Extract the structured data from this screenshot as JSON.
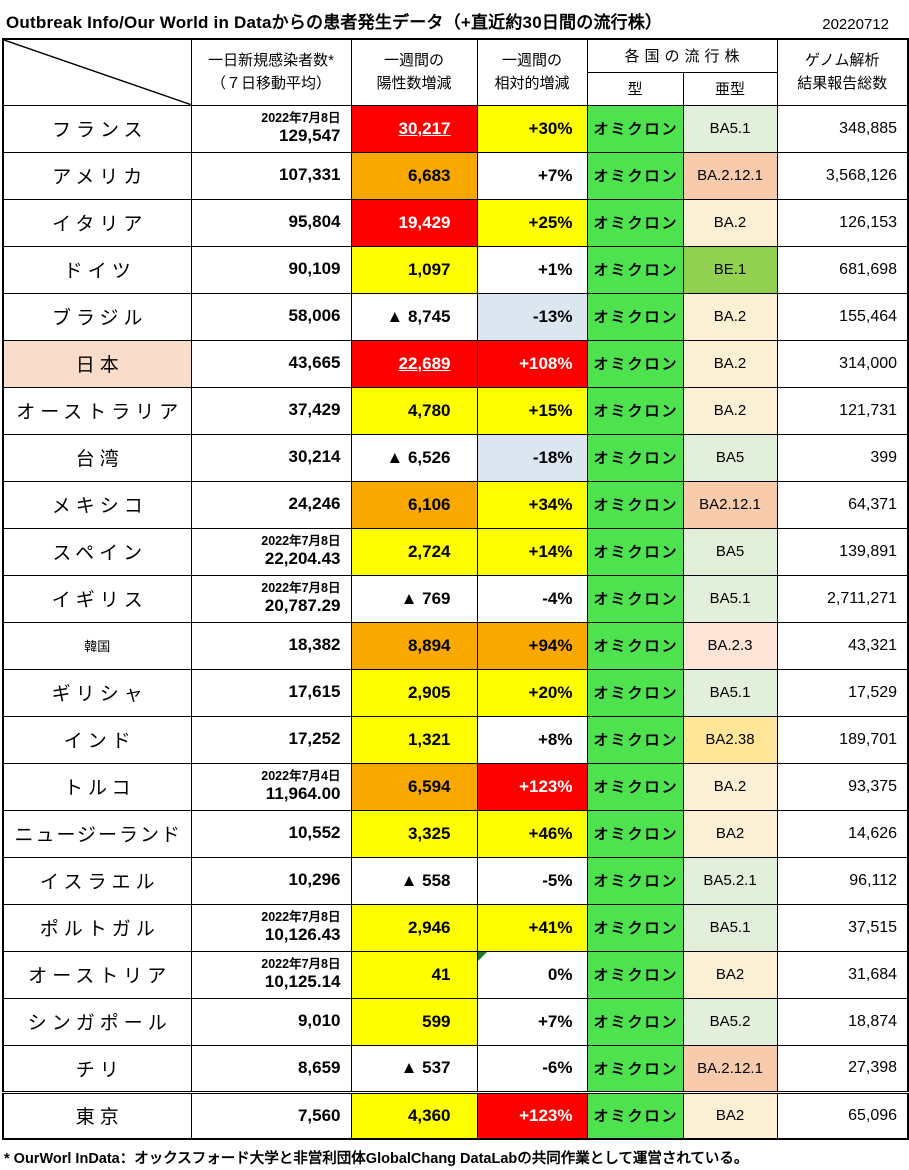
{
  "title": "Outbreak Info/Our World in Dataからの患者発生データ（+直近約30日間の流行株）",
  "report_date": "20220712",
  "header": {
    "daily_line1": "一日新規感染者数*",
    "daily_line2": "（７日移動平均）",
    "weekly_line1": "一週間の",
    "weekly_line2": "陽性数増減",
    "relative_line1": "一週間の",
    "relative_line2": "相対的増減",
    "strain_group": "各国の流行株",
    "strain_type": "型",
    "strain_subtype": "亜型",
    "genome_line1": "ゲノム解析",
    "genome_line2": "結果報告総数"
  },
  "footnote": "* OurWorl InData：オックスフォード大学と非営利団体GlobalChang DataLabの共同作業として運営されている。",
  "colors": {
    "red": "#FF0000",
    "yellow": "#FFFF00",
    "orange": "#F9A800",
    "ltblue": "#DCE6F1",
    "ltgreen": "#E2EFDA",
    "salmon": "#F8CBAD",
    "cream": "#FBF0D3",
    "green": "#92D050",
    "pink": "#FCE4D6",
    "ltorange": "#FFE699",
    "omicron": "#4FE24F",
    "japan_bg": "#FADCCB",
    "white": "#FFFFFF",
    "note_triangle": "#1E7B2E"
  },
  "type_value": "オミクロン",
  "rows": [
    {
      "country": "フランス",
      "daily_date": "2022年7月8日",
      "daily": "129,547",
      "weekly": "30,217",
      "weekly_bg": "red",
      "weekly_white": true,
      "weekly_underline": true,
      "relative": "+30%",
      "relative_bg": "yellow",
      "subtype": "BA5.1",
      "subtype_bg": "ltgreen",
      "genome": "348,885"
    },
    {
      "country": "アメリカ",
      "daily": "107,331",
      "weekly": "6,683",
      "weekly_bg": "orange",
      "relative": "+7%",
      "relative_bg": "white",
      "subtype": "BA.2.12.1",
      "subtype_bg": "salmon",
      "genome": "3,568,126"
    },
    {
      "country": "イタリア",
      "daily": "95,804",
      "weekly": "19,429",
      "weekly_bg": "red",
      "weekly_white": true,
      "relative": "+25%",
      "relative_bg": "yellow",
      "subtype": "BA.2",
      "subtype_bg": "cream",
      "genome": "126,153"
    },
    {
      "country": "ドイツ",
      "daily": "90,109",
      "weekly": "1,097",
      "weekly_bg": "yellow",
      "relative": "+1%",
      "relative_bg": "white",
      "subtype": "BE.1",
      "subtype_bg": "green",
      "genome": "681,698"
    },
    {
      "country": "ブラジル",
      "daily": "58,006",
      "weekly": "▲ 8,745",
      "weekly_bg": "white",
      "relative": "-13%",
      "relative_bg": "ltblue",
      "subtype": "BA.2",
      "subtype_bg": "cream",
      "genome": "155,464"
    },
    {
      "country": "日本",
      "country_bg": "japan_bg",
      "daily": "43,665",
      "weekly": "22,689",
      "weekly_bg": "red",
      "weekly_white": true,
      "weekly_underline": true,
      "relative": "+108%",
      "relative_bg": "red",
      "relative_white": true,
      "subtype": "BA.2",
      "subtype_bg": "cream",
      "genome": "314,000"
    },
    {
      "country": "オーストラリア",
      "daily": "37,429",
      "weekly": "4,780",
      "weekly_bg": "yellow",
      "relative": "+15%",
      "relative_bg": "yellow",
      "subtype": "BA.2",
      "subtype_bg": "cream",
      "genome": "121,731"
    },
    {
      "country": "台湾",
      "daily": "30,214",
      "weekly": "▲ 6,526",
      "weekly_bg": "white",
      "relative": "-18%",
      "relative_bg": "ltblue",
      "subtype": "BA5",
      "subtype_bg": "ltgreen",
      "genome": "399"
    },
    {
      "country": "メキシコ",
      "daily": "24,246",
      "weekly": "6,106",
      "weekly_bg": "orange",
      "relative": "+34%",
      "relative_bg": "yellow",
      "subtype": "BA2.12.1",
      "subtype_bg": "salmon",
      "genome": "64,371"
    },
    {
      "country": "スペイン",
      "daily_date": "2022年7月8日",
      "daily": "22,204.43",
      "weekly": "2,724",
      "weekly_bg": "yellow",
      "relative": "+14%",
      "relative_bg": "yellow",
      "subtype": "BA5",
      "subtype_bg": "ltgreen",
      "genome": "139,891"
    },
    {
      "country": "イギリス",
      "daily_date": "2022年7月8日",
      "daily": "20,787.29",
      "weekly": "▲ 769",
      "weekly_bg": "white",
      "relative": "-4%",
      "relative_bg": "white",
      "subtype": "BA5.1",
      "subtype_bg": "ltgreen",
      "genome": "2,711,271"
    },
    {
      "country": "韓国",
      "country_small": true,
      "daily": "18,382",
      "weekly": "8,894",
      "weekly_bg": "orange",
      "relative": "+94%",
      "relative_bg": "orange",
      "subtype": "BA.2.3",
      "subtype_bg": "pink",
      "genome": "43,321"
    },
    {
      "country": "ギリシャ",
      "daily": "17,615",
      "weekly": "2,905",
      "weekly_bg": "yellow",
      "relative": "+20%",
      "relative_bg": "yellow",
      "subtype": "BA5.1",
      "subtype_bg": "ltgreen",
      "genome": "17,529"
    },
    {
      "country": "インド",
      "daily": "17,252",
      "weekly": "1,321",
      "weekly_bg": "yellow",
      "relative": "+8%",
      "relative_bg": "white",
      "subtype": "BA2.38",
      "subtype_bg": "ltorange",
      "genome": "189,701"
    },
    {
      "country": "トルコ",
      "daily_date": "2022年7月4日",
      "daily": "11,964.00",
      "weekly": "6,594",
      "weekly_bg": "orange",
      "relative": "+123%",
      "relative_bg": "red",
      "relative_white": true,
      "subtype": "BA.2",
      "subtype_bg": "cream",
      "genome": "93,375"
    },
    {
      "country": "ニュージーランド",
      "daily": "10,552",
      "weekly": "3,325",
      "weekly_bg": "yellow",
      "relative": "+46%",
      "relative_bg": "yellow",
      "subtype": "BA2",
      "subtype_bg": "cream",
      "genome": "14,626"
    },
    {
      "country": "イスラエル",
      "daily": "10,296",
      "weekly": "▲ 558",
      "weekly_bg": "white",
      "relative": "-5%",
      "relative_bg": "white",
      "subtype": "BA5.2.1",
      "subtype_bg": "ltgreen",
      "genome": "96,112"
    },
    {
      "country": "ポルトガル",
      "daily_date": "2022年7月8日",
      "daily": "10,126.43",
      "weekly": "2,946",
      "weekly_bg": "yellow",
      "relative": "+41%",
      "relative_bg": "yellow",
      "subtype": "BA5.1",
      "subtype_bg": "ltgreen",
      "genome": "37,515"
    },
    {
      "country": "オーストリア",
      "daily_date": "2022年7月8日",
      "daily": "10,125.14",
      "weekly": "41",
      "weekly_bg": "yellow",
      "relative": "0%",
      "relative_bg": "white",
      "relative_note": true,
      "subtype": "BA2",
      "subtype_bg": "cream",
      "genome": "31,684"
    },
    {
      "country": "シンガポール",
      "daily": "9,010",
      "weekly": "599",
      "weekly_bg": "yellow",
      "relative": "+7%",
      "relative_bg": "white",
      "subtype": "BA5.2",
      "subtype_bg": "ltgreen",
      "genome": "18,874"
    },
    {
      "country": "チリ",
      "daily": "8,659",
      "weekly": "▲ 537",
      "weekly_bg": "white",
      "relative": "-6%",
      "relative_bg": "white",
      "subtype": "BA.2.12.1",
      "subtype_bg": "salmon",
      "genome": "27,398"
    },
    {
      "country": "東京",
      "double_top": true,
      "daily": "7,560",
      "weekly": "4,360",
      "weekly_bg": "yellow",
      "relative": "+123%",
      "relative_bg": "red",
      "relative_white": true,
      "subtype": "BA2",
      "subtype_bg": "cream",
      "genome": "65,096"
    }
  ]
}
